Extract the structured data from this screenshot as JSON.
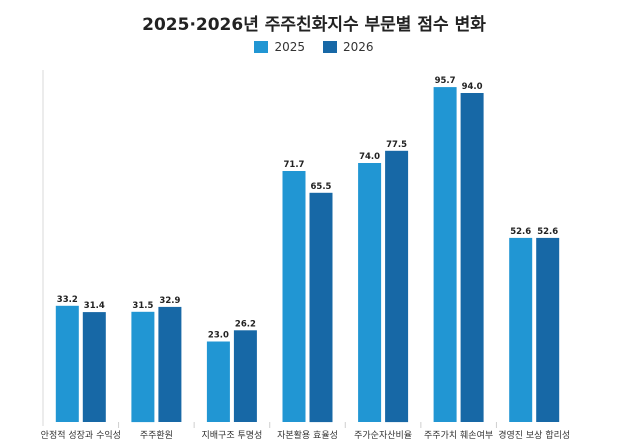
{
  "chart_data": {
    "type": "bar",
    "title": "2025·2026년 주주친화지수 부문별 점수 변화",
    "categories": [
      "안정적 성장과 수익성",
      "주주환원",
      "지배구조 투명성",
      "자본활용 효율성",
      "주가순자산비율",
      "주주가치 훼손여부",
      "경영진 보상 합리성"
    ],
    "series": [
      {
        "name": "2025",
        "color": "#2196d3",
        "values": [
          33.2,
          31.5,
          23.0,
          71.7,
          74.0,
          95.7,
          52.6
        ]
      },
      {
        "name": "2026",
        "color": "#1768a6",
        "values": [
          31.4,
          32.9,
          26.2,
          65.5,
          77.5,
          94.0,
          52.6
        ]
      }
    ],
    "value_labels": [
      [
        "33.2",
        "31.5",
        "23.0",
        "71.7",
        "74.0",
        "95.7",
        "52.6"
      ],
      [
        "31.4",
        "32.9",
        "26.2",
        "65.5",
        "77.5",
        "94.0",
        "52.6"
      ]
    ],
    "ylim": [
      0,
      100
    ],
    "grid": false,
    "legend_position": "top-center",
    "xlabel": "",
    "ylabel": ""
  }
}
